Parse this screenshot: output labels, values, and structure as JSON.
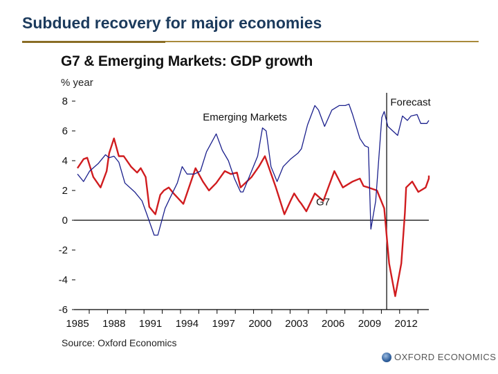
{
  "slide": {
    "title": "Subdued recovery for major economies",
    "source": "Source: Oxford Economics",
    "logo_text": "OXFORD ECONOMICS",
    "logo_icon": "globe-icon"
  },
  "colors": {
    "title": "#1b3a5c",
    "rule": "#a88a3a",
    "g7": "#d01c1f",
    "em": "#1a1f8c"
  },
  "chart_data": {
    "type": "line",
    "title": "G7 & Emerging Markets: GDP growth",
    "ylabel": "% year",
    "xlabel": "",
    "ylim": [
      -6,
      8
    ],
    "xlim": [
      1985,
      2014
    ],
    "yticks": [
      8,
      6,
      4,
      2,
      0,
      -2,
      -4,
      -6
    ],
    "ytick_labels": [
      "8",
      "6",
      "4",
      "2",
      "0",
      "-2",
      "-4",
      "-6"
    ],
    "xtick_labels": [
      "1985",
      "1988",
      "1991",
      "1994",
      "1997",
      "2000",
      "2003",
      "2006",
      "2009",
      "2012"
    ],
    "xtick_years": [
      1985,
      1988,
      1991,
      1994,
      1997,
      2000,
      2003,
      2006,
      2009,
      2012
    ],
    "grid": false,
    "zero_line": true,
    "forecast_start": 2010.4,
    "annotations": [
      {
        "text": "Forecast",
        "x": 2010.7,
        "y": 7.7
      },
      {
        "text": "Emerging Markets",
        "x": 1995.3,
        "y": 6.7
      },
      {
        "text": "G7",
        "x": 2004.6,
        "y": 1.0
      }
    ],
    "series": [
      {
        "name": "G7",
        "points": [
          [
            1985.0,
            3.5
          ],
          [
            1985.5,
            4.1
          ],
          [
            1985.8,
            4.2
          ],
          [
            1986.3,
            2.9
          ],
          [
            1986.9,
            2.2
          ],
          [
            1987.4,
            3.3
          ],
          [
            1987.6,
            4.5
          ],
          [
            1988.0,
            5.5
          ],
          [
            1988.4,
            4.3
          ],
          [
            1988.8,
            4.3
          ],
          [
            1989.4,
            3.6
          ],
          [
            1989.9,
            3.2
          ],
          [
            1990.2,
            3.5
          ],
          [
            1990.6,
            2.9
          ],
          [
            1990.9,
            0.9
          ],
          [
            1991.4,
            0.4
          ],
          [
            1991.8,
            1.7
          ],
          [
            1992.1,
            2.0
          ],
          [
            1992.5,
            2.2
          ],
          [
            1992.9,
            1.8
          ],
          [
            1993.7,
            1.1
          ],
          [
            1994.7,
            3.5
          ],
          [
            1995.3,
            2.6
          ],
          [
            1995.8,
            2.0
          ],
          [
            1996.4,
            2.5
          ],
          [
            1997.1,
            3.3
          ],
          [
            1997.6,
            3.1
          ],
          [
            1998.1,
            3.2
          ],
          [
            1998.4,
            2.2
          ],
          [
            1999.3,
            2.9
          ],
          [
            1999.9,
            3.6
          ],
          [
            2000.4,
            4.3
          ],
          [
            2001.3,
            2.2
          ],
          [
            2002.0,
            0.4
          ],
          [
            2002.5,
            1.3
          ],
          [
            2002.8,
            1.8
          ],
          [
            2003.2,
            1.3
          ],
          [
            2003.4,
            1.1
          ],
          [
            2003.8,
            0.6
          ],
          [
            2004.5,
            1.8
          ],
          [
            2005.2,
            1.3
          ],
          [
            2006.1,
            3.3
          ],
          [
            2006.8,
            2.2
          ],
          [
            2007.6,
            2.6
          ],
          [
            2008.2,
            2.8
          ],
          [
            2008.5,
            2.3
          ],
          [
            2008.9,
            2.2
          ],
          [
            2009.6,
            2.0
          ],
          [
            2010.2,
            0.8
          ],
          [
            2010.6,
            -2.9
          ],
          [
            2011.1,
            -5.1
          ],
          [
            2011.6,
            -2.9
          ],
          [
            2011.9,
            0.5
          ],
          [
            2012.0,
            2.2
          ],
          [
            2012.5,
            2.6
          ],
          [
            2013.0,
            1.9
          ],
          [
            2013.6,
            2.2
          ],
          [
            2014.7,
            2.8
          ],
          [
            2015.9,
            3.0
          ]
        ]
      },
      {
        "name": "Emerging Markets",
        "points": [
          [
            1985.0,
            3.1
          ],
          [
            1985.5,
            2.6
          ],
          [
            1986.0,
            3.3
          ],
          [
            1986.7,
            3.8
          ],
          [
            1987.3,
            4.4
          ],
          [
            1987.6,
            4.2
          ],
          [
            1988.0,
            4.3
          ],
          [
            1988.4,
            3.9
          ],
          [
            1988.9,
            2.5
          ],
          [
            1989.7,
            1.9
          ],
          [
            1990.3,
            1.3
          ],
          [
            1990.7,
            0.4
          ],
          [
            1991.3,
            -1.0
          ],
          [
            1991.6,
            -1.0
          ],
          [
            1992.2,
            0.8
          ],
          [
            1992.6,
            1.5
          ],
          [
            1993.2,
            2.5
          ],
          [
            1993.6,
            3.6
          ],
          [
            1994.0,
            3.1
          ],
          [
            1994.6,
            3.1
          ],
          [
            1995.1,
            3.3
          ],
          [
            1995.6,
            4.6
          ],
          [
            1996.4,
            5.8
          ],
          [
            1996.9,
            4.7
          ],
          [
            1997.4,
            4.0
          ],
          [
            1997.9,
            2.8
          ],
          [
            1998.4,
            1.9
          ],
          [
            1998.6,
            1.9
          ],
          [
            1999.1,
            2.9
          ],
          [
            1999.8,
            4.3
          ],
          [
            2000.2,
            6.2
          ],
          [
            2000.5,
            6.0
          ],
          [
            2000.9,
            3.6
          ],
          [
            2001.4,
            2.6
          ],
          [
            2001.9,
            3.6
          ],
          [
            2002.5,
            4.1
          ],
          [
            2003.1,
            4.5
          ],
          [
            2003.4,
            4.8
          ],
          [
            2003.9,
            6.4
          ],
          [
            2004.5,
            7.7
          ],
          [
            2004.8,
            7.4
          ],
          [
            2005.3,
            6.3
          ],
          [
            2005.9,
            7.4
          ],
          [
            2006.5,
            7.7
          ],
          [
            2007.0,
            7.7
          ],
          [
            2007.3,
            7.8
          ],
          [
            2007.6,
            7.1
          ],
          [
            2008.2,
            5.5
          ],
          [
            2008.6,
            5.0
          ],
          [
            2008.9,
            4.9
          ],
          [
            2009.1,
            -0.6
          ],
          [
            2009.5,
            1.3
          ],
          [
            2010.0,
            6.9
          ],
          [
            2010.2,
            7.3
          ],
          [
            2010.5,
            6.3
          ],
          [
            2010.9,
            6.0
          ],
          [
            2011.3,
            5.7
          ],
          [
            2011.7,
            7.0
          ],
          [
            2012.1,
            6.7
          ],
          [
            2012.4,
            7.0
          ],
          [
            2012.9,
            7.1
          ],
          [
            2013.2,
            6.5
          ],
          [
            2013.7,
            6.5
          ],
          [
            2013.9,
            6.7
          ]
        ]
      }
    ]
  }
}
